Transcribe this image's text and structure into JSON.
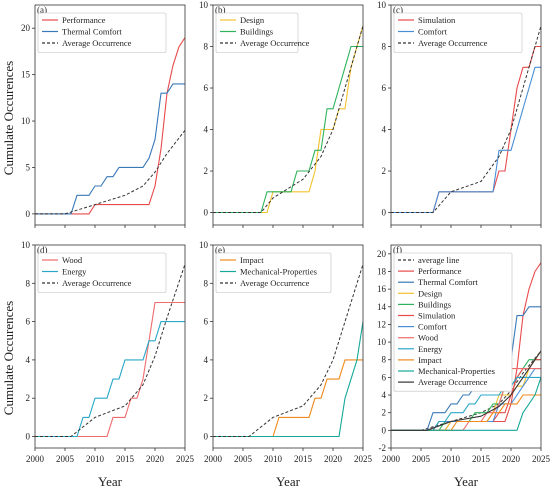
{
  "figure": {
    "ylabel": "Cumulate Occurences",
    "xlabel": "Year"
  },
  "colors": {
    "Performance": "#e84a4a",
    "Thermal Comfort": "#3a79b7",
    "Average Occurrence": "#333333",
    "Design": "#f2c12e",
    "Buildings": "#2fb35a",
    "Simulation": "#e84a4a",
    "Comfort": "#4a8fd6",
    "Wood": "#f06b6b",
    "Energy": "#2aa8c9",
    "Impact": "#f08a1c",
    "Mechanical-Properties": "#16a89a",
    "average line": "#333333"
  },
  "chart_data": [
    {
      "id": "a",
      "label": "(a)",
      "type": "line",
      "xlim": [
        2000,
        2025
      ],
      "ylim": [
        -1.2,
        22.5
      ],
      "yticks": [
        0,
        5,
        10,
        15,
        20
      ],
      "xticks": [],
      "legend": "top-left",
      "series": [
        {
          "name": "Performance",
          "x": [
            2000,
            2005,
            2009,
            2010,
            2019,
            2020,
            2021,
            2022,
            2023,
            2024,
            2025
          ],
          "y": [
            0,
            0,
            0,
            1,
            1,
            3,
            7,
            13,
            16,
            18,
            19
          ]
        },
        {
          "name": "Thermal Comfort",
          "x": [
            2000,
            2006,
            2007,
            2009,
            2010,
            2011,
            2012,
            2013,
            2014,
            2015,
            2016,
            2017,
            2018,
            2019,
            2020,
            2021,
            2022,
            2023,
            2024,
            2025
          ],
          "y": [
            0,
            0,
            2,
            2,
            3,
            3,
            4,
            4,
            5,
            5,
            5,
            5,
            5,
            6,
            8,
            13,
            13,
            14,
            14,
            14
          ]
        },
        {
          "name": "Average Occurrence",
          "x": [
            2000,
            2005,
            2010,
            2015,
            2018,
            2020,
            2022,
            2025
          ],
          "y": [
            0,
            0,
            1,
            2,
            3,
            4.5,
            6.5,
            9
          ],
          "dashed": true
        }
      ]
    },
    {
      "id": "b",
      "label": "(b)",
      "type": "line",
      "xlim": [
        2000,
        2025
      ],
      "ylim": [
        -0.6,
        10
      ],
      "yticks": [
        0,
        2,
        4,
        6,
        8,
        10
      ],
      "xticks": [],
      "legend": "top-left",
      "series": [
        {
          "name": "Design",
          "x": [
            2000,
            2009,
            2010,
            2015,
            2016,
            2017,
            2018,
            2019,
            2020,
            2021,
            2022,
            2023,
            2024,
            2025
          ],
          "y": [
            0,
            0,
            1,
            1,
            1,
            2,
            4,
            4,
            4,
            5,
            5,
            7,
            8,
            9
          ]
        },
        {
          "name": "Buildings",
          "x": [
            2000,
            2008,
            2009,
            2012,
            2013,
            2014,
            2015,
            2016,
            2017,
            2018,
            2019,
            2020,
            2021,
            2022,
            2023,
            2024,
            2025
          ],
          "y": [
            0,
            0,
            1,
            1,
            1,
            2,
            2,
            2,
            3,
            3,
            5,
            5,
            6,
            7,
            8,
            8,
            8
          ]
        },
        {
          "name": "Average Occurrence",
          "x": [
            2000,
            2008,
            2010,
            2015,
            2018,
            2020,
            2022,
            2025
          ],
          "y": [
            0,
            0,
            0.7,
            1.6,
            2.7,
            4,
            6,
            9
          ],
          "dashed": true
        }
      ]
    },
    {
      "id": "c",
      "label": "(c)",
      "type": "line",
      "xlim": [
        2000,
        2025
      ],
      "ylim": [
        -0.6,
        10
      ],
      "yticks": [
        0,
        2,
        4,
        6,
        8,
        10
      ],
      "xticks": [],
      "legend": "top-left",
      "series": [
        {
          "name": "Simulation",
          "x": [
            2000,
            2007,
            2008,
            2009,
            2017,
            2018,
            2019,
            2020,
            2021,
            2022,
            2023,
            2024,
            2025
          ],
          "y": [
            0,
            0,
            1,
            1,
            1,
            2,
            2,
            4,
            6,
            7,
            7,
            8,
            8
          ]
        },
        {
          "name": "Comfort",
          "x": [
            2000,
            2007,
            2008,
            2009,
            2016,
            2017,
            2018,
            2019,
            2020,
            2021,
            2022,
            2023,
            2024,
            2025
          ],
          "y": [
            0,
            0,
            1,
            1,
            1,
            1,
            3,
            3,
            3,
            4,
            5,
            6,
            7,
            7
          ]
        },
        {
          "name": "Average Occurrence",
          "x": [
            2000,
            2007,
            2010,
            2015,
            2018,
            2020,
            2022,
            2025
          ],
          "y": [
            0,
            0,
            1,
            1.5,
            2.7,
            4,
            6,
            9
          ],
          "dashed": true
        }
      ]
    },
    {
      "id": "d",
      "label": "(d)",
      "type": "line",
      "xlim": [
        2000,
        2025
      ],
      "ylim": [
        -0.6,
        10
      ],
      "yticks": [
        0,
        2,
        4,
        6,
        8,
        10
      ],
      "xticks": [
        2000,
        2005,
        2010,
        2015,
        2020,
        2025
      ],
      "legend": "top-left",
      "series": [
        {
          "name": "Wood",
          "x": [
            2000,
            2012,
            2013,
            2015,
            2016,
            2017,
            2018,
            2019,
            2020,
            2021,
            2022,
            2023,
            2024,
            2025
          ],
          "y": [
            0,
            0,
            1,
            1,
            2,
            2,
            3,
            5,
            7,
            7,
            7,
            7,
            7,
            7
          ]
        },
        {
          "name": "Energy",
          "x": [
            2000,
            2007,
            2008,
            2009,
            2010,
            2011,
            2012,
            2013,
            2014,
            2015,
            2016,
            2017,
            2018,
            2019,
            2020,
            2021,
            2022,
            2023,
            2024,
            2025
          ],
          "y": [
            0,
            0,
            1,
            1,
            2,
            2,
            2,
            3,
            3,
            4,
            4,
            4,
            4,
            5,
            5,
            6,
            6,
            6,
            6,
            6
          ]
        },
        {
          "name": "Average Occurrence",
          "x": [
            2000,
            2006,
            2010,
            2015,
            2018,
            2020,
            2022,
            2025
          ],
          "y": [
            0,
            0,
            1,
            1.6,
            2.7,
            4.2,
            6.2,
            9
          ],
          "dashed": true
        }
      ]
    },
    {
      "id": "e",
      "label": "(e)",
      "type": "line",
      "xlim": [
        2000,
        2025
      ],
      "ylim": [
        -0.6,
        10
      ],
      "yticks": [
        0,
        2,
        4,
        6,
        8,
        10
      ],
      "xticks": [
        2000,
        2005,
        2010,
        2015,
        2020,
        2025
      ],
      "legend": "top-left",
      "series": [
        {
          "name": "Impact",
          "x": [
            2000,
            2010,
            2011,
            2015,
            2016,
            2017,
            2018,
            2019,
            2020,
            2021,
            2022,
            2023,
            2024,
            2025
          ],
          "y": [
            0,
            0,
            1,
            1,
            1,
            2,
            2,
            3,
            3,
            3,
            4,
            4,
            4,
            4
          ]
        },
        {
          "name": "Mechanical-Properties",
          "x": [
            2000,
            2020,
            2021,
            2022,
            2023,
            2024,
            2025
          ],
          "y": [
            0,
            0,
            0,
            2,
            3,
            4,
            6
          ]
        },
        {
          "name": "Average Occurrence",
          "x": [
            2000,
            2006,
            2010,
            2015,
            2018,
            2020,
            2022,
            2025
          ],
          "y": [
            0,
            0,
            1,
            1.6,
            2.7,
            4,
            6,
            9
          ],
          "dashed": true
        }
      ]
    },
    {
      "id": "f",
      "label": "(f)",
      "type": "line",
      "xlim": [
        2000,
        2025
      ],
      "ylim": [
        -2,
        21
      ],
      "yticks": [
        -2,
        0,
        2,
        4,
        6,
        8,
        10,
        12,
        14,
        16,
        18,
        20
      ],
      "xticks": [
        2000,
        2005,
        2010,
        2015,
        2020,
        2025
      ],
      "legend": "top-left",
      "series": [
        {
          "name": "average line",
          "x": [
            2000,
            2005,
            2010,
            2015,
            2018,
            2020,
            2022,
            2025
          ],
          "y": [
            0,
            0,
            1,
            2,
            3,
            4.5,
            6.5,
            9
          ],
          "dashed": true
        },
        {
          "name": "Performance",
          "x": [
            2000,
            2005,
            2009,
            2010,
            2019,
            2020,
            2021,
            2022,
            2023,
            2024,
            2025
          ],
          "y": [
            0,
            0,
            0,
            1,
            1,
            3,
            7,
            13,
            16,
            18,
            19
          ]
        },
        {
          "name": "Thermal Comfort",
          "x": [
            2000,
            2006,
            2007,
            2009,
            2010,
            2011,
            2012,
            2013,
            2014,
            2015,
            2016,
            2017,
            2018,
            2019,
            2020,
            2021,
            2022,
            2023,
            2024,
            2025
          ],
          "y": [
            0,
            0,
            2,
            2,
            3,
            3,
            4,
            4,
            5,
            5,
            5,
            5,
            5,
            6,
            8,
            13,
            13,
            14,
            14,
            14
          ]
        },
        {
          "name": "Design",
          "x": [
            2000,
            2009,
            2010,
            2015,
            2016,
            2017,
            2018,
            2019,
            2020,
            2021,
            2022,
            2023,
            2024,
            2025
          ],
          "y": [
            0,
            0,
            1,
            1,
            1,
            2,
            4,
            4,
            4,
            5,
            5,
            7,
            8,
            9
          ]
        },
        {
          "name": "Buildings",
          "x": [
            2000,
            2008,
            2009,
            2012,
            2013,
            2014,
            2015,
            2016,
            2017,
            2018,
            2019,
            2020,
            2021,
            2022,
            2023,
            2024,
            2025
          ],
          "y": [
            0,
            0,
            1,
            1,
            1,
            2,
            2,
            2,
            3,
            3,
            5,
            5,
            6,
            7,
            8,
            8,
            8
          ]
        },
        {
          "name": "Simulation",
          "x": [
            2000,
            2007,
            2008,
            2009,
            2017,
            2018,
            2019,
            2020,
            2021,
            2022,
            2023,
            2024,
            2025
          ],
          "y": [
            0,
            0,
            1,
            1,
            1,
            2,
            2,
            4,
            6,
            7,
            7,
            8,
            8
          ]
        },
        {
          "name": "Comfort",
          "x": [
            2000,
            2007,
            2008,
            2009,
            2016,
            2017,
            2018,
            2019,
            2020,
            2021,
            2022,
            2023,
            2024,
            2025
          ],
          "y": [
            0,
            0,
            1,
            1,
            1,
            1,
            3,
            3,
            3,
            4,
            5,
            6,
            7,
            7
          ]
        },
        {
          "name": "Wood",
          "x": [
            2000,
            2012,
            2013,
            2015,
            2016,
            2017,
            2018,
            2019,
            2020,
            2021,
            2022,
            2023,
            2024,
            2025
          ],
          "y": [
            0,
            0,
            1,
            1,
            2,
            2,
            3,
            5,
            7,
            7,
            7,
            7,
            7,
            7
          ]
        },
        {
          "name": "Energy",
          "x": [
            2000,
            2007,
            2008,
            2009,
            2010,
            2011,
            2012,
            2013,
            2014,
            2015,
            2016,
            2017,
            2018,
            2019,
            2020,
            2021,
            2022,
            2023,
            2024,
            2025
          ],
          "y": [
            0,
            0,
            1,
            1,
            2,
            2,
            2,
            3,
            3,
            4,
            4,
            4,
            4,
            5,
            5,
            6,
            6,
            6,
            6,
            6
          ]
        },
        {
          "name": "Impact",
          "x": [
            2000,
            2010,
            2011,
            2015,
            2016,
            2017,
            2018,
            2019,
            2020,
            2021,
            2022,
            2023,
            2024,
            2025
          ],
          "y": [
            0,
            0,
            1,
            1,
            1,
            2,
            2,
            3,
            3,
            3,
            4,
            4,
            4,
            4
          ]
        },
        {
          "name": "Mechanical-Properties",
          "x": [
            2000,
            2020,
            2021,
            2022,
            2023,
            2024,
            2025
          ],
          "y": [
            0,
            0,
            0,
            2,
            3,
            4,
            6
          ]
        },
        {
          "name": "Average Occurrence",
          "x": [
            2000,
            2006,
            2010,
            2015,
            2018,
            2020,
            2022,
            2025
          ],
          "y": [
            0,
            0,
            1,
            1.6,
            2.7,
            4,
            6,
            9
          ]
        }
      ]
    }
  ]
}
